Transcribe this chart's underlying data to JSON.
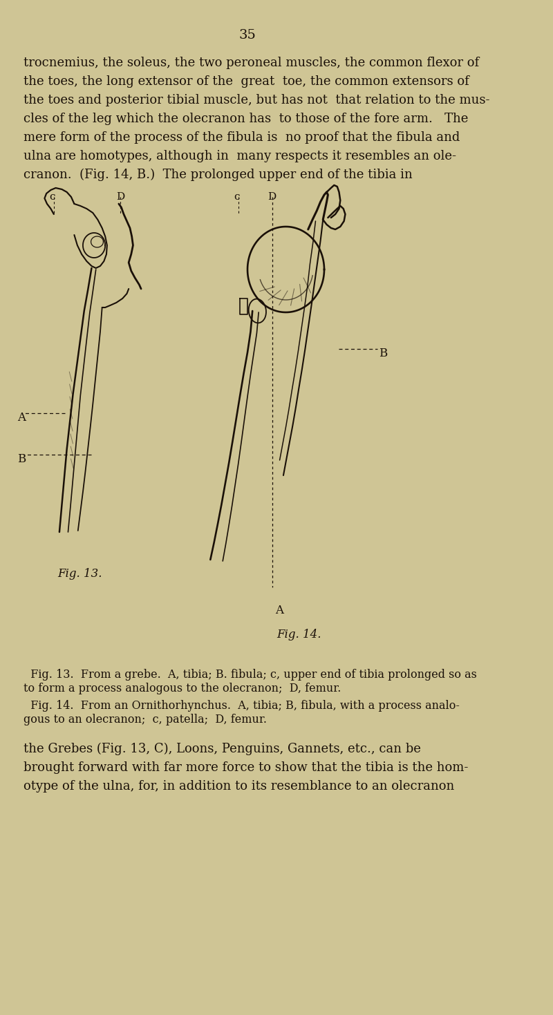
{
  "background_color": "#cfc595",
  "page_number": "35",
  "text_color": "#1a1008",
  "body_text_lines": [
    "trocnemius, the soleus, the two peroneal muscles, the common flexor of",
    "the toes, the long extensor of the  great  toe, the common extensors of",
    "the toes and posterior tibial muscle, but has not  that relation to the mus-",
    "cles of the leg which the olecranon has  to those of the fore arm.   The",
    "mere form of the process of the fibula is  no proof that the fibula and",
    "ulna are homotypes, although in  many respects it resembles an ole-",
    "cranon.  (Fig. 14, B.)  The prolonged upper end of the tibia in"
  ],
  "caption_line1": "  Fig. 13.  From a grebe.  A, tibia; B. fibula; c, upper end of tibia prolonged so as",
  "caption_line2": "to form a process analogous to the olecranon;  D, femur.",
  "caption_line3": "  Fig. 14.  From an Ornithorhynchus.  A, tibia; B, fibula, with a process analo-",
  "caption_line4": "gous to an olecranon;  c, patella;  D, femur.",
  "bottom_text_lines": [
    "the Grebes (Fig. 13, C), Loons, Penguins, Gannets, etc., can be",
    "brought forward with far more force to show that the tibia is the hom-",
    "otype of the ulna, for, in addition to its resemblance to an olecranon"
  ],
  "fig13_label": "Fig. 13.",
  "fig14_label": "Fig. 14."
}
